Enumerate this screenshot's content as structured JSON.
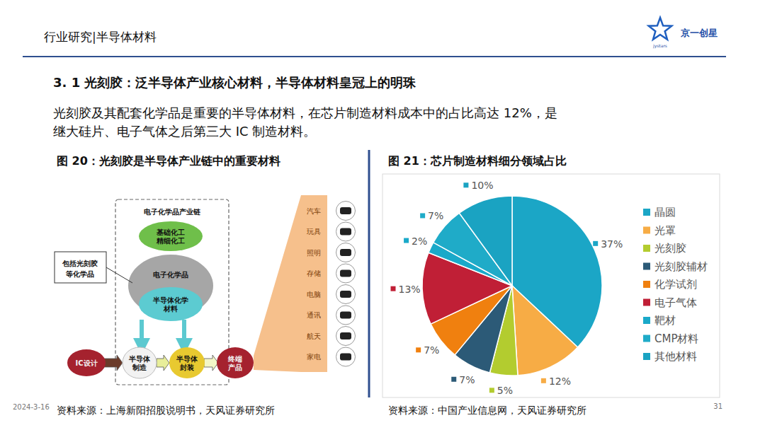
{
  "header": {
    "section": "行业研究|半导体材料",
    "logo": "京一创星",
    "logo_sub": "jystars",
    "title": "3. 1  光刻胶：泛半导体产业核心材料，半导体材料皇冠上的明珠",
    "paragraph_lines": [
      "光刻胶及其配套化学品是重要的半导体材料，在芯片制造材料成本中的占比高达 12%，是",
      "继大硅片、电子气体之后第三大 IC 制造材料。"
    ],
    "date": "2024-3-16",
    "page": "31"
  },
  "figure_20": {
    "title": "图 20：光刻胶是半导体产业链中的重要材料",
    "source": "资料来源：上海新阳招股说明书，天风证券研究所",
    "chain_title": "电子化学品产业链",
    "callout": [
      "包括光刻胶",
      "等化学品"
    ],
    "nodes": [
      {
        "lines": [
          "基础化工",
          "精细化工"
        ]
      },
      {
        "lines": [
          "电子化学品"
        ]
      },
      {
        "lines": [
          "半导体化学",
          "材料"
        ]
      },
      {
        "lines": [
          "IC设计"
        ]
      },
      {
        "lines": [
          "半导体",
          "制造"
        ]
      },
      {
        "lines": [
          "半导体",
          "封装"
        ]
      },
      {
        "lines": [
          "终端",
          "产品"
        ]
      }
    ],
    "applications": [
      "汽车",
      "玩具",
      "照明",
      "存储",
      "电脑",
      "通讯",
      "航天",
      "家电"
    ]
  },
  "figure_21": {
    "source": "资料来源：中国产业信息网，天风证券研究所"
  },
  "chart_data": {
    "type": "pie",
    "title": "图 21：芯片制造材料细分领域占比",
    "categories": [
      "晶圆",
      "光罩",
      "光刻胶",
      "光刻胶辅材",
      "化学试剂",
      "电子气体",
      "靶材",
      "CMP材料",
      "其他材料"
    ],
    "values": [
      37,
      12,
      5,
      7,
      7,
      13,
      2,
      7,
      10
    ],
    "value_labels": [
      "37%",
      "12%",
      "5%",
      "7%",
      "7%",
      "13%",
      "2%",
      "7%",
      "10%"
    ],
    "colors": [
      "#1ba6c6",
      "#f7ac45",
      "#b3cc2f",
      "#2c5a77",
      "#f0800f",
      "#c01f36",
      "#1aa9c9",
      "#1fabc8",
      "#1aa3c2"
    ],
    "data_labels": true,
    "legend": "right"
  }
}
